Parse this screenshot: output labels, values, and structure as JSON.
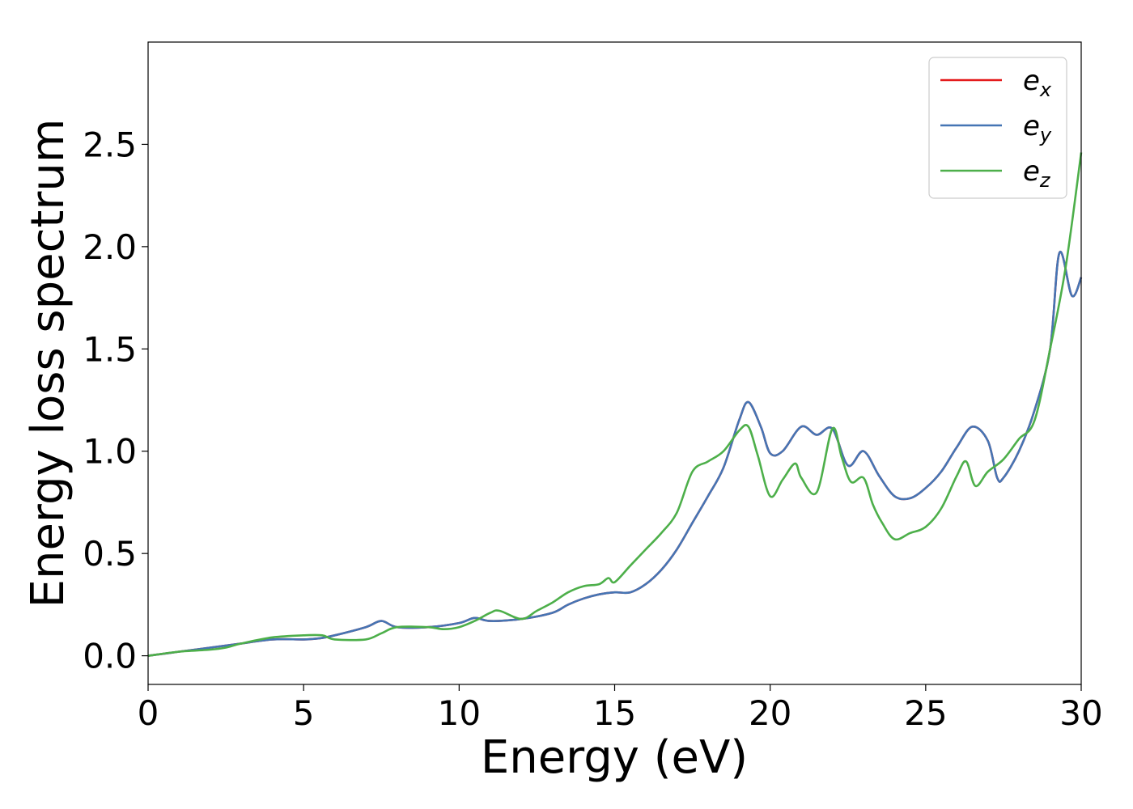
{
  "chart_data": {
    "type": "line",
    "xlabel": "Energy (eV)",
    "ylabel": "Energy loss spectrum",
    "xlim": [
      0,
      30
    ],
    "ylim": [
      -0.14,
      3.0
    ],
    "x_ticks": [
      0,
      5,
      10,
      15,
      20,
      25,
      30
    ],
    "y_ticks": [
      0.0,
      0.5,
      1.0,
      1.5,
      2.0,
      2.5
    ],
    "grid": false,
    "legend_position": "top-right",
    "series": [
      {
        "name_base": "e",
        "name_sub": "x",
        "color": "#e41a1c",
        "x": [
          0,
          1,
          2,
          3,
          4,
          5,
          5.5,
          6,
          7,
          7.5,
          8,
          9,
          10,
          10.5,
          11,
          12,
          13,
          13.5,
          14,
          14.5,
          15,
          15.5,
          16,
          16.5,
          17,
          17.5,
          18,
          18.5,
          19,
          19.3,
          19.7,
          20,
          20.4,
          21,
          21.5,
          22,
          22.5,
          23,
          23.5,
          24,
          24.5,
          25,
          25.5,
          26,
          26.5,
          27,
          27.3,
          27.5,
          28,
          28.5,
          29,
          29.3,
          29.7,
          30
        ],
        "y": [
          0,
          0.02,
          0.04,
          0.06,
          0.08,
          0.08,
          0.085,
          0.1,
          0.14,
          0.17,
          0.14,
          0.14,
          0.16,
          0.185,
          0.17,
          0.18,
          0.21,
          0.25,
          0.28,
          0.3,
          0.31,
          0.31,
          0.35,
          0.42,
          0.52,
          0.65,
          0.78,
          0.92,
          1.15,
          1.24,
          1.12,
          0.99,
          1.0,
          1.12,
          1.08,
          1.11,
          0.93,
          1.0,
          0.88,
          0.78,
          0.77,
          0.82,
          0.9,
          1.02,
          1.12,
          1.05,
          0.87,
          0.87,
          1.0,
          1.2,
          1.5,
          1.97,
          1.76,
          1.85
        ]
      },
      {
        "name_base": "e",
        "name_sub": "y",
        "color": "#4575b4",
        "x": [
          0,
          1,
          2,
          3,
          4,
          5,
          5.5,
          6,
          7,
          7.5,
          8,
          9,
          10,
          10.5,
          11,
          12,
          13,
          13.5,
          14,
          14.5,
          15,
          15.5,
          16,
          16.5,
          17,
          17.5,
          18,
          18.5,
          19,
          19.3,
          19.7,
          20,
          20.4,
          21,
          21.5,
          22,
          22.5,
          23,
          23.5,
          24,
          24.5,
          25,
          25.5,
          26,
          26.5,
          27,
          27.3,
          27.5,
          28,
          28.5,
          29,
          29.3,
          29.7,
          30
        ],
        "y": [
          0,
          0.02,
          0.04,
          0.06,
          0.08,
          0.08,
          0.085,
          0.1,
          0.14,
          0.17,
          0.14,
          0.14,
          0.16,
          0.185,
          0.17,
          0.18,
          0.21,
          0.25,
          0.28,
          0.3,
          0.31,
          0.31,
          0.35,
          0.42,
          0.52,
          0.65,
          0.78,
          0.92,
          1.15,
          1.24,
          1.12,
          0.99,
          1.0,
          1.12,
          1.08,
          1.11,
          0.93,
          1.0,
          0.88,
          0.78,
          0.77,
          0.82,
          0.9,
          1.02,
          1.12,
          1.05,
          0.87,
          0.87,
          1.0,
          1.2,
          1.5,
          1.97,
          1.76,
          1.85
        ]
      },
      {
        "name_base": "e",
        "name_sub": "z",
        "color": "#4daf4a",
        "x": [
          0,
          1,
          2,
          2.5,
          3,
          4,
          5,
          5.6,
          6,
          7,
          7.5,
          8,
          9,
          9.5,
          10,
          10.5,
          11,
          11.3,
          12,
          12.5,
          13,
          13.5,
          14,
          14.5,
          14.8,
          15,
          15.5,
          16,
          16.5,
          17,
          17.5,
          18,
          18.5,
          19,
          19.3,
          19.6,
          20,
          20.4,
          20.8,
          21,
          21.5,
          22,
          22.3,
          22.6,
          23,
          23.3,
          23.6,
          24,
          24.5,
          25,
          25.5,
          26,
          26.3,
          26.6,
          27,
          27.5,
          28,
          28.5,
          29,
          29.5,
          30
        ],
        "y": [
          0,
          0.02,
          0.03,
          0.04,
          0.06,
          0.09,
          0.1,
          0.1,
          0.08,
          0.08,
          0.11,
          0.14,
          0.14,
          0.13,
          0.14,
          0.17,
          0.21,
          0.22,
          0.18,
          0.22,
          0.26,
          0.31,
          0.34,
          0.35,
          0.38,
          0.36,
          0.44,
          0.52,
          0.6,
          0.7,
          0.9,
          0.95,
          1.0,
          1.1,
          1.12,
          0.98,
          0.78,
          0.86,
          0.94,
          0.87,
          0.8,
          1.11,
          0.97,
          0.85,
          0.87,
          0.74,
          0.65,
          0.57,
          0.6,
          0.63,
          0.72,
          0.88,
          0.95,
          0.83,
          0.9,
          0.96,
          1.06,
          1.15,
          1.5,
          1.9,
          2.46
        ]
      }
    ]
  }
}
